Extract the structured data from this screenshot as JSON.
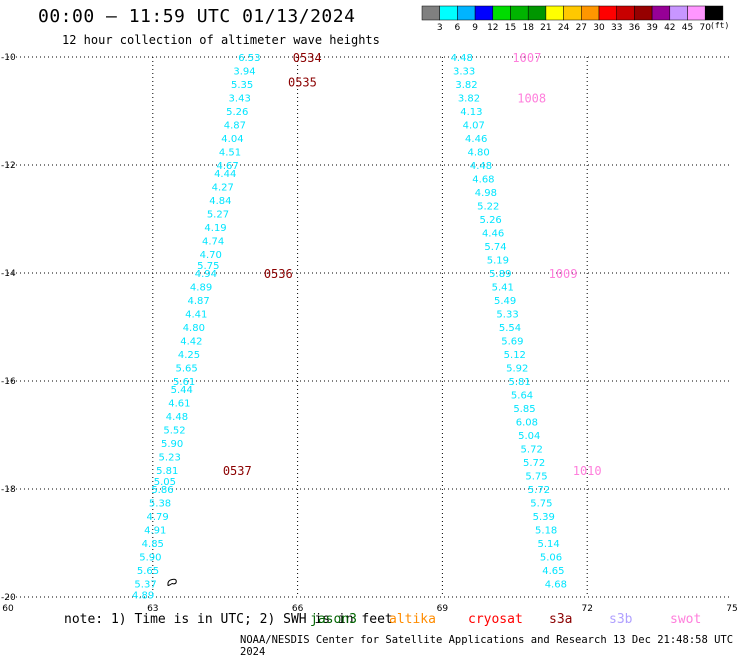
{
  "header": {
    "title": "00:00 – 11:59 UTC 01/13/2024",
    "subtitle": "12 hour collection of altimeter wave heights"
  },
  "color_scale": {
    "labels": [
      "3",
      "6",
      "9",
      "12",
      "15",
      "18",
      "21",
      "24",
      "27",
      "30",
      "33",
      "36",
      "39",
      "42",
      "45",
      "70"
    ],
    "colors": [
      "#808080",
      "#00ffff",
      "#00b4ff",
      "#0000ff",
      "#00dc00",
      "#00b400",
      "#009600",
      "#ffff00",
      "#ffc800",
      "#ff9600",
      "#ff0000",
      "#c80000",
      "#960000",
      "#960096",
      "#c896ff",
      "#ff96ff",
      "#000000"
    ],
    "unit": "(ft)"
  },
  "chart_data": {
    "type": "scatter",
    "xlim": [
      60,
      75
    ],
    "ylim": [
      -20,
      -10
    ],
    "x_ticks": [
      "60",
      "63",
      "66",
      "69",
      "72",
      "75"
    ],
    "y_ticks": [
      "-10",
      "-12",
      "-14",
      "-16",
      "-18",
      "-20"
    ],
    "grid": true,
    "tracks": [
      {
        "name": "track-west",
        "color": "#00e5ff",
        "points": [
          {
            "x": 65.0,
            "y": -10.0,
            "v": "6.53"
          },
          {
            "x": 64.9,
            "y": -10.25,
            "v": "3.94"
          },
          {
            "x": 64.85,
            "y": -10.5,
            "v": "5.35"
          },
          {
            "x": 64.8,
            "y": -10.75,
            "v": "3.43"
          },
          {
            "x": 64.75,
            "y": -11.0,
            "v": "5.26"
          },
          {
            "x": 64.7,
            "y": -11.25,
            "v": "4.87"
          },
          {
            "x": 64.65,
            "y": -11.5,
            "v": "4.04"
          },
          {
            "x": 64.6,
            "y": -11.75,
            "v": "4.51"
          },
          {
            "x": 64.55,
            "y": -12.0,
            "v": "4.67"
          },
          {
            "x": 64.5,
            "y": -12.15,
            "v": "4.44"
          },
          {
            "x": 64.45,
            "y": -12.4,
            "v": "4.27"
          },
          {
            "x": 64.4,
            "y": -12.65,
            "v": "4.84"
          },
          {
            "x": 64.35,
            "y": -12.9,
            "v": "5.27"
          },
          {
            "x": 64.3,
            "y": -13.15,
            "v": "4.19"
          },
          {
            "x": 64.25,
            "y": -13.4,
            "v": "4.74"
          },
          {
            "x": 64.2,
            "y": -13.65,
            "v": "4.70"
          },
          {
            "x": 64.15,
            "y": -13.85,
            "v": "5.75"
          },
          {
            "x": 64.1,
            "y": -14.0,
            "v": "4.94"
          },
          {
            "x": 64.0,
            "y": -14.25,
            "v": "4.89"
          },
          {
            "x": 63.95,
            "y": -14.5,
            "v": "4.87"
          },
          {
            "x": 63.9,
            "y": -14.75,
            "v": "4.41"
          },
          {
            "x": 63.85,
            "y": -15.0,
            "v": "4.80"
          },
          {
            "x": 63.8,
            "y": -15.25,
            "v": "4.42"
          },
          {
            "x": 63.75,
            "y": -15.5,
            "v": "4.25"
          },
          {
            "x": 63.7,
            "y": -15.75,
            "v": "5.65"
          },
          {
            "x": 63.65,
            "y": -16.0,
            "v": "5.61"
          },
          {
            "x": 63.6,
            "y": -16.15,
            "v": "5.44"
          },
          {
            "x": 63.55,
            "y": -16.4,
            "v": "4.61"
          },
          {
            "x": 63.5,
            "y": -16.65,
            "v": "4.48"
          },
          {
            "x": 63.45,
            "y": -16.9,
            "v": "5.52"
          },
          {
            "x": 63.4,
            "y": -17.15,
            "v": "5.90"
          },
          {
            "x": 63.35,
            "y": -17.4,
            "v": "5.23"
          },
          {
            "x": 63.3,
            "y": -17.65,
            "v": "5.81"
          },
          {
            "x": 63.25,
            "y": -17.85,
            "v": "5.05"
          },
          {
            "x": 63.2,
            "y": -18.0,
            "v": "5.86"
          },
          {
            "x": 63.15,
            "y": -18.25,
            "v": "5.38"
          },
          {
            "x": 63.1,
            "y": -18.5,
            "v": "4.79"
          },
          {
            "x": 63.05,
            "y": -18.75,
            "v": "4.91"
          },
          {
            "x": 63.0,
            "y": -19.0,
            "v": "4.85"
          },
          {
            "x": 62.95,
            "y": -19.25,
            "v": "5.90"
          },
          {
            "x": 62.9,
            "y": -19.5,
            "v": "5.65"
          },
          {
            "x": 62.85,
            "y": -19.75,
            "v": "5.37"
          },
          {
            "x": 62.8,
            "y": -19.95,
            "v": "4.89"
          }
        ]
      },
      {
        "name": "track-east",
        "color": "#00e5ff",
        "points": [
          {
            "x": 69.4,
            "y": -10.0,
            "v": "4.48"
          },
          {
            "x": 69.45,
            "y": -10.25,
            "v": "3.33"
          },
          {
            "x": 69.5,
            "y": -10.5,
            "v": "3.82"
          },
          {
            "x": 69.55,
            "y": -10.75,
            "v": "3.82"
          },
          {
            "x": 69.6,
            "y": -11.0,
            "v": "4.13"
          },
          {
            "x": 69.65,
            "y": -11.25,
            "v": "4.07"
          },
          {
            "x": 69.7,
            "y": -11.5,
            "v": "4.46"
          },
          {
            "x": 69.75,
            "y": -11.75,
            "v": "4.80"
          },
          {
            "x": 69.8,
            "y": -12.0,
            "v": "4.48"
          },
          {
            "x": 69.85,
            "y": -12.25,
            "v": "4.68"
          },
          {
            "x": 69.9,
            "y": -12.5,
            "v": "4.98"
          },
          {
            "x": 69.95,
            "y": -12.75,
            "v": "5.22"
          },
          {
            "x": 70.0,
            "y": -13.0,
            "v": "5.26"
          },
          {
            "x": 70.05,
            "y": -13.25,
            "v": "4.46"
          },
          {
            "x": 70.1,
            "y": -13.5,
            "v": "5.74"
          },
          {
            "x": 70.15,
            "y": -13.75,
            "v": "5.19"
          },
          {
            "x": 70.2,
            "y": -14.0,
            "v": "5.89"
          },
          {
            "x": 70.25,
            "y": -14.25,
            "v": "5.41"
          },
          {
            "x": 70.3,
            "y": -14.5,
            "v": "5.49"
          },
          {
            "x": 70.35,
            "y": -14.75,
            "v": "5.33"
          },
          {
            "x": 70.4,
            "y": -15.0,
            "v": "5.54"
          },
          {
            "x": 70.45,
            "y": -15.25,
            "v": "5.69"
          },
          {
            "x": 70.5,
            "y": -15.5,
            "v": "5.12"
          },
          {
            "x": 70.55,
            "y": -15.75,
            "v": "5.92"
          },
          {
            "x": 70.6,
            "y": -16.0,
            "v": "5.81"
          },
          {
            "x": 70.65,
            "y": -16.25,
            "v": "5.64"
          },
          {
            "x": 70.7,
            "y": -16.5,
            "v": "5.85"
          },
          {
            "x": 70.75,
            "y": -16.75,
            "v": "6.08"
          },
          {
            "x": 70.8,
            "y": -17.0,
            "v": "5.04"
          },
          {
            "x": 70.85,
            "y": -17.25,
            "v": "5.72"
          },
          {
            "x": 70.9,
            "y": -17.5,
            "v": "5.72"
          },
          {
            "x": 70.95,
            "y": -17.75,
            "v": "5.75"
          },
          {
            "x": 71.0,
            "y": -18.0,
            "v": "5.72"
          },
          {
            "x": 71.05,
            "y": -18.25,
            "v": "5.75"
          },
          {
            "x": 71.1,
            "y": -18.5,
            "v": "5.39"
          },
          {
            "x": 71.15,
            "y": -18.75,
            "v": "5.18"
          },
          {
            "x": 71.2,
            "y": -19.0,
            "v": "5.14"
          },
          {
            "x": 71.25,
            "y": -19.25,
            "v": "5.06"
          },
          {
            "x": 71.3,
            "y": -19.5,
            "v": "4.65"
          },
          {
            "x": 71.35,
            "y": -19.75,
            "v": "4.68"
          }
        ]
      }
    ],
    "time_labels": [
      {
        "x": 66.2,
        "y": -10.0,
        "text": "0534",
        "color": "#8b0000"
      },
      {
        "x": 66.1,
        "y": -10.45,
        "text": "0535",
        "color": "#8b0000"
      },
      {
        "x": 65.6,
        "y": -14.0,
        "text": "0536",
        "color": "#8b0000"
      },
      {
        "x": 64.75,
        "y": -17.65,
        "text": "0537",
        "color": "#8b0000"
      },
      {
        "x": 70.75,
        "y": -10.0,
        "text": "1007",
        "color": "#ff7fdc"
      },
      {
        "x": 70.85,
        "y": -10.75,
        "text": "1008",
        "color": "#ff7fdc"
      },
      {
        "x": 71.5,
        "y": -14.0,
        "text": "1009",
        "color": "#ff7fdc"
      },
      {
        "x": 72.0,
        "y": -17.65,
        "text": "1010",
        "color": "#ff7fdc"
      }
    ],
    "land_shape": {
      "x": 63.4,
      "y": -19.75
    }
  },
  "footer": {
    "note": "note:  1) Time is in UTC; 2) SWH is in feet",
    "satellites": [
      {
        "name": "jason3",
        "color": "#006400"
      },
      {
        "name": "altika",
        "color": "#ff8c00"
      },
      {
        "name": "cryosat",
        "color": "#ff0000"
      },
      {
        "name": "s3a",
        "color": "#8b0000"
      },
      {
        "name": "s3b",
        "color": "#b0a0ff"
      },
      {
        "name": "swot",
        "color": "#ff7fdc"
      }
    ],
    "credit": "NOAA/NESDIS Center for Satellite Applications and Research   13 Dec 21:48:58 UTC 2024"
  }
}
